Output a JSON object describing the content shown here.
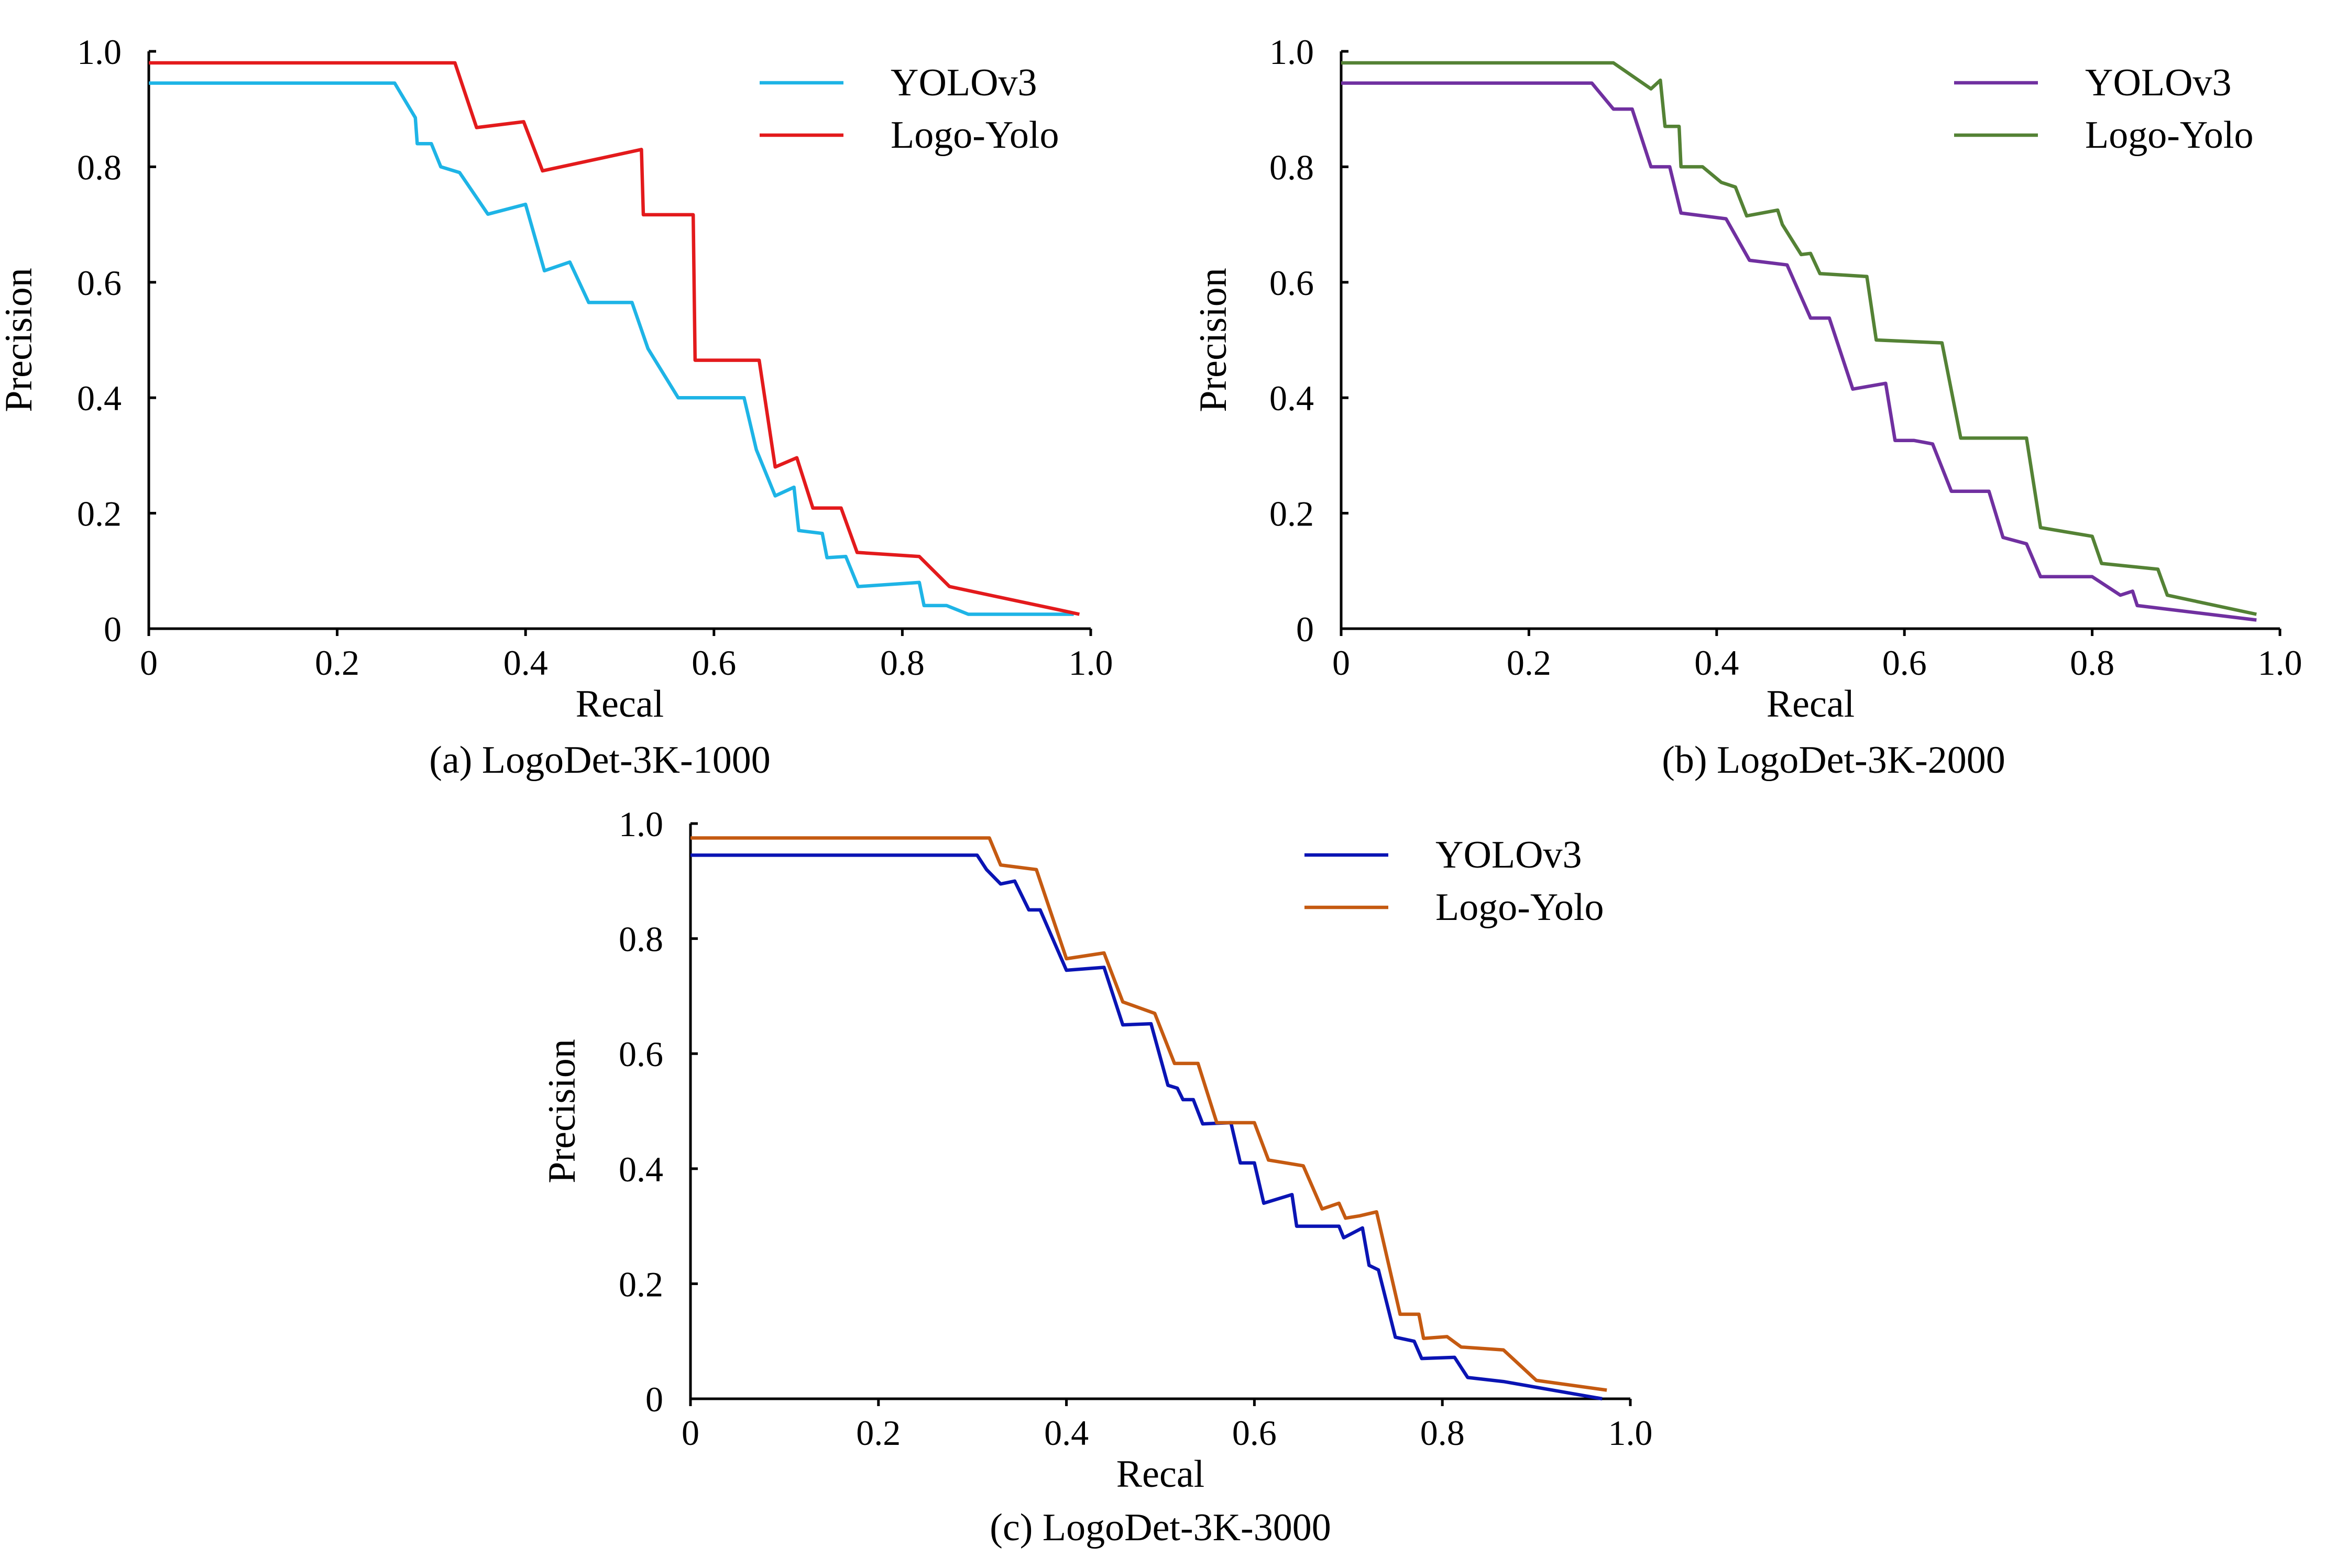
{
  "chart_data": [
    {
      "type": "line",
      "caption": "(a) LogoDet-3K-1000",
      "xlabel": "Recal",
      "ylabel": "Precision",
      "xlim": [
        0,
        1.0
      ],
      "ylim": [
        0,
        1.0
      ],
      "xticks": [
        "0",
        "0.2",
        "0.4",
        "0.6",
        "0.8",
        "1.0"
      ],
      "yticks": [
        "0",
        "0.2",
        "0.4",
        "0.6",
        "0.8",
        "1.0"
      ],
      "grid": false,
      "legend_position": "top-right",
      "series": [
        {
          "name": "YOLOv3",
          "color": "#1EB4E6",
          "points": [
            [
              0,
              0.945
            ],
            [
              0.261,
              0.945
            ],
            [
              0.283,
              0.885
            ],
            [
              0.285,
              0.84
            ],
            [
              0.3,
              0.84
            ],
            [
              0.31,
              0.8
            ],
            [
              0.33,
              0.79
            ],
            [
              0.36,
              0.718
            ],
            [
              0.4,
              0.735
            ],
            [
              0.42,
              0.62
            ],
            [
              0.447,
              0.635
            ],
            [
              0.467,
              0.565
            ],
            [
              0.513,
              0.565
            ],
            [
              0.53,
              0.485
            ],
            [
              0.562,
              0.4
            ],
            [
              0.632,
              0.4
            ],
            [
              0.645,
              0.31
            ],
            [
              0.665,
              0.23
            ],
            [
              0.685,
              0.245
            ],
            [
              0.69,
              0.17
            ],
            [
              0.715,
              0.165
            ],
            [
              0.72,
              0.123
            ],
            [
              0.74,
              0.125
            ],
            [
              0.753,
              0.073
            ],
            [
              0.818,
              0.08
            ],
            [
              0.823,
              0.04
            ],
            [
              0.847,
              0.04
            ],
            [
              0.87,
              0.025
            ],
            [
              0.982,
              0.025
            ]
          ]
        },
        {
          "name": "Logo-Yolo",
          "color": "#E31A1C",
          "points": [
            [
              0,
              0.98
            ],
            [
              0.325,
              0.98
            ],
            [
              0.348,
              0.868
            ],
            [
              0.398,
              0.878
            ],
            [
              0.418,
              0.793
            ],
            [
              0.523,
              0.83
            ],
            [
              0.525,
              0.717
            ],
            [
              0.578,
              0.717
            ],
            [
              0.58,
              0.465
            ],
            [
              0.648,
              0.465
            ],
            [
              0.665,
              0.28
            ],
            [
              0.688,
              0.296
            ],
            [
              0.705,
              0.209
            ],
            [
              0.735,
              0.209
            ],
            [
              0.752,
              0.132
            ],
            [
              0.818,
              0.125
            ],
            [
              0.85,
              0.073
            ],
            [
              0.965,
              0.033
            ],
            [
              0.988,
              0.025
            ]
          ]
        }
      ]
    },
    {
      "type": "line",
      "caption": "(b) LogoDet-3K-2000",
      "xlabel": "Recal",
      "ylabel": "Precision",
      "xlim": [
        0,
        1.0
      ],
      "ylim": [
        0,
        1.0
      ],
      "xticks": [
        "0",
        "0.2",
        "0.4",
        "0.6",
        "0.8",
        "1.0"
      ],
      "yticks": [
        "0",
        "0.2",
        "0.4",
        "0.6",
        "0.8",
        "1.0"
      ],
      "grid": false,
      "legend_position": "top-right",
      "series": [
        {
          "name": "YOLOv3",
          "color": "#7030A0",
          "points": [
            [
              0,
              0.945
            ],
            [
              0.267,
              0.945
            ],
            [
              0.29,
              0.9
            ],
            [
              0.31,
              0.9
            ],
            [
              0.33,
              0.8
            ],
            [
              0.35,
              0.8
            ],
            [
              0.362,
              0.72
            ],
            [
              0.41,
              0.71
            ],
            [
              0.435,
              0.638
            ],
            [
              0.475,
              0.63
            ],
            [
              0.5,
              0.538
            ],
            [
              0.52,
              0.538
            ],
            [
              0.545,
              0.415
            ],
            [
              0.58,
              0.425
            ],
            [
              0.59,
              0.326
            ],
            [
              0.61,
              0.326
            ],
            [
              0.63,
              0.32
            ],
            [
              0.65,
              0.238
            ],
            [
              0.69,
              0.238
            ],
            [
              0.705,
              0.158
            ],
            [
              0.73,
              0.147
            ],
            [
              0.745,
              0.09
            ],
            [
              0.8,
              0.09
            ],
            [
              0.83,
              0.058
            ],
            [
              0.843,
              0.065
            ],
            [
              0.848,
              0.04
            ],
            [
              0.975,
              0.015
            ]
          ]
        },
        {
          "name": "Logo-Yolo",
          "color": "#548235",
          "points": [
            [
              0,
              0.98
            ],
            [
              0.29,
              0.98
            ],
            [
              0.33,
              0.935
            ],
            [
              0.34,
              0.95
            ],
            [
              0.345,
              0.87
            ],
            [
              0.36,
              0.87
            ],
            [
              0.362,
              0.8
            ],
            [
              0.385,
              0.8
            ],
            [
              0.405,
              0.773
            ],
            [
              0.42,
              0.765
            ],
            [
              0.432,
              0.715
            ],
            [
              0.465,
              0.725
            ],
            [
              0.47,
              0.7
            ],
            [
              0.49,
              0.648
            ],
            [
              0.5,
              0.65
            ],
            [
              0.51,
              0.615
            ],
            [
              0.56,
              0.61
            ],
            [
              0.57,
              0.5
            ],
            [
              0.64,
              0.495
            ],
            [
              0.66,
              0.33
            ],
            [
              0.73,
              0.33
            ],
            [
              0.745,
              0.175
            ],
            [
              0.8,
              0.16
            ],
            [
              0.81,
              0.113
            ],
            [
              0.87,
              0.103
            ],
            [
              0.88,
              0.058
            ],
            [
              0.975,
              0.025
            ]
          ]
        }
      ]
    },
    {
      "type": "line",
      "caption": "(c) LogoDet-3K-3000",
      "xlabel": "Recal",
      "ylabel": "Precision",
      "xlim": [
        0,
        1.0
      ],
      "ylim": [
        0,
        1.0
      ],
      "xticks": [
        "0",
        "0.2",
        "0.4",
        "0.6",
        "0.8",
        "1.0"
      ],
      "yticks": [
        "0",
        "0.2",
        "0.4",
        "0.6",
        "0.8",
        "1.0"
      ],
      "grid": false,
      "legend_position": "top-right",
      "series": [
        {
          "name": "YOLOv3",
          "color": "#0A14B4",
          "points": [
            [
              0,
              0.945
            ],
            [
              0.305,
              0.945
            ],
            [
              0.315,
              0.92
            ],
            [
              0.33,
              0.895
            ],
            [
              0.345,
              0.9
            ],
            [
              0.36,
              0.85
            ],
            [
              0.372,
              0.85
            ],
            [
              0.4,
              0.745
            ],
            [
              0.44,
              0.75
            ],
            [
              0.46,
              0.65
            ],
            [
              0.49,
              0.652
            ],
            [
              0.508,
              0.545
            ],
            [
              0.518,
              0.54
            ],
            [
              0.524,
              0.52
            ],
            [
              0.535,
              0.52
            ],
            [
              0.545,
              0.478
            ],
            [
              0.575,
              0.48
            ],
            [
              0.585,
              0.41
            ],
            [
              0.6,
              0.41
            ],
            [
              0.61,
              0.34
            ],
            [
              0.64,
              0.355
            ],
            [
              0.645,
              0.3
            ],
            [
              0.69,
              0.3
            ],
            [
              0.695,
              0.28
            ],
            [
              0.715,
              0.297
            ],
            [
              0.722,
              0.232
            ],
            [
              0.732,
              0.224
            ],
            [
              0.75,
              0.107
            ],
            [
              0.77,
              0.1
            ],
            [
              0.778,
              0.07
            ],
            [
              0.813,
              0.072
            ],
            [
              0.827,
              0.037
            ],
            [
              0.865,
              0.03
            ],
            [
              0.97,
              0
            ]
          ]
        },
        {
          "name": "Logo-Yolo",
          "color": "#C55A11",
          "points": [
            [
              0,
              0.975
            ],
            [
              0.318,
              0.975
            ],
            [
              0.33,
              0.928
            ],
            [
              0.368,
              0.92
            ],
            [
              0.4,
              0.765
            ],
            [
              0.44,
              0.775
            ],
            [
              0.46,
              0.69
            ],
            [
              0.494,
              0.67
            ],
            [
              0.515,
              0.583
            ],
            [
              0.54,
              0.583
            ],
            [
              0.56,
              0.48
            ],
            [
              0.6,
              0.48
            ],
            [
              0.615,
              0.415
            ],
            [
              0.652,
              0.405
            ],
            [
              0.672,
              0.33
            ],
            [
              0.69,
              0.34
            ],
            [
              0.697,
              0.314
            ],
            [
              0.712,
              0.318
            ],
            [
              0.73,
              0.325
            ],
            [
              0.755,
              0.147
            ],
            [
              0.775,
              0.147
            ],
            [
              0.78,
              0.105
            ],
            [
              0.805,
              0.108
            ],
            [
              0.82,
              0.09
            ],
            [
              0.865,
              0.085
            ],
            [
              0.9,
              0.032
            ],
            [
              0.975,
              0.015
            ]
          ]
        }
      ]
    }
  ]
}
